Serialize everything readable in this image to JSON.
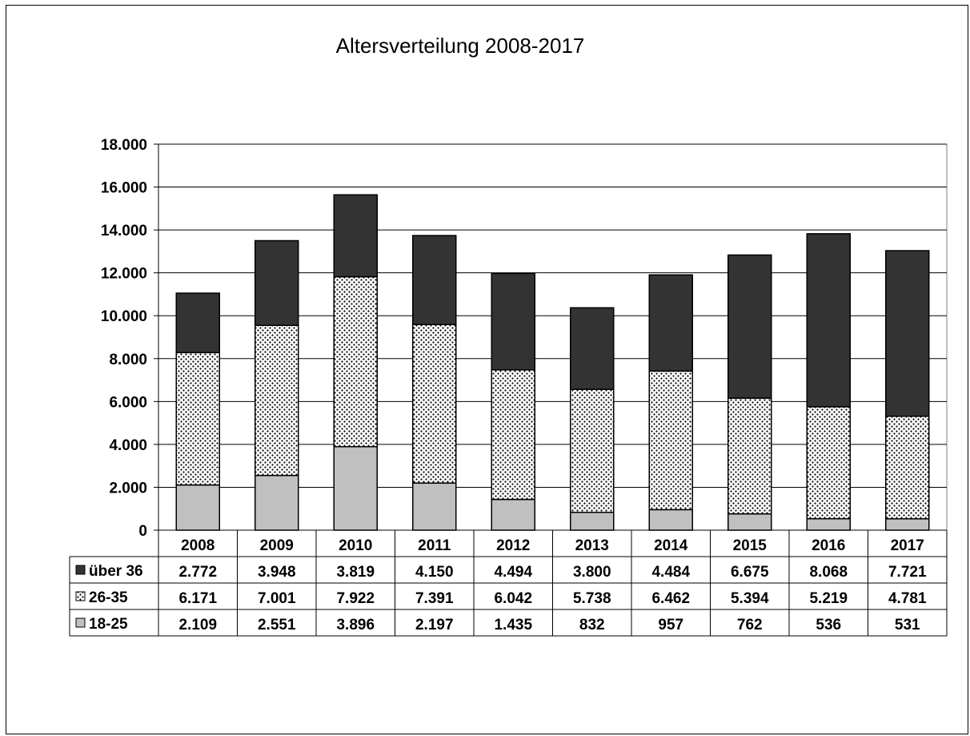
{
  "chart_data": {
    "type": "bar",
    "stacked": true,
    "title": "Altersverteilung 2008-2017",
    "xlabel": "",
    "ylabel": "",
    "categories": [
      "2008",
      "2009",
      "2010",
      "2011",
      "2012",
      "2013",
      "2014",
      "2015",
      "2016",
      "2017"
    ],
    "ylim": [
      0,
      18000
    ],
    "yticks": [
      0,
      2000,
      4000,
      6000,
      8000,
      10000,
      12000,
      14000,
      16000,
      18000
    ],
    "ytick_labels": [
      "0",
      "2.000",
      "4.000",
      "6.000",
      "8.000",
      "10.000",
      "12.000",
      "14.000",
      "16.000",
      "18.000"
    ],
    "grid": true,
    "legend": "data-table-rows",
    "series": [
      {
        "name": "18-25",
        "color": "#c0c0c0",
        "pattern": "solid",
        "values": [
          2109,
          2551,
          3896,
          2197,
          1435,
          832,
          957,
          762,
          536,
          531
        ],
        "labels": [
          "2.109",
          "2.551",
          "3.896",
          "2.197",
          "1.435",
          "832",
          "957",
          "762",
          "536",
          "531"
        ]
      },
      {
        "name": "26-35",
        "color": "#ffffff",
        "pattern": "dots",
        "values": [
          6171,
          7001,
          7922,
          7391,
          6042,
          5738,
          6462,
          5394,
          5219,
          4781
        ],
        "labels": [
          "6.171",
          "7.001",
          "7.922",
          "7.391",
          "6.042",
          "5.738",
          "6.462",
          "5.394",
          "5.219",
          "4.781"
        ]
      },
      {
        "name": "über 36",
        "color": "#333333",
        "pattern": "solid",
        "values": [
          2772,
          3948,
          3819,
          4150,
          4494,
          3800,
          4484,
          6675,
          8068,
          7721
        ],
        "labels": [
          "2.772",
          "3.948",
          "3.819",
          "4.150",
          "4.494",
          "3.800",
          "4.484",
          "6.675",
          "8.068",
          "7.721"
        ]
      }
    ],
    "table_row_order": [
      "über 36",
      "26-35",
      "18-25"
    ]
  }
}
